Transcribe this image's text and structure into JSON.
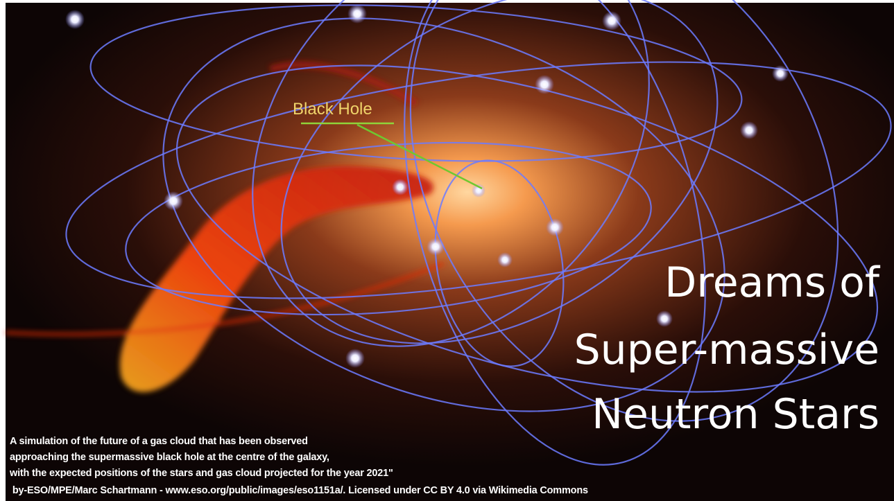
{
  "label": "Black Hole",
  "title": [
    "Dreams of",
    "Super-massive",
    "Neutron Stars"
  ],
  "caption": [
    "A simulation of the future of a gas cloud that has been observed",
    "approaching the supermassive black hole at the centre of the galaxy,",
    "with the expected positions of the stars and gas cloud projected for the year 2021\"",
    " by-ESO/MPE/Marc Schartmann - www.eso.org/public/images/eso1151a/. Licensed under CC BY 4.0 via Wikimedia Commons"
  ]
}
